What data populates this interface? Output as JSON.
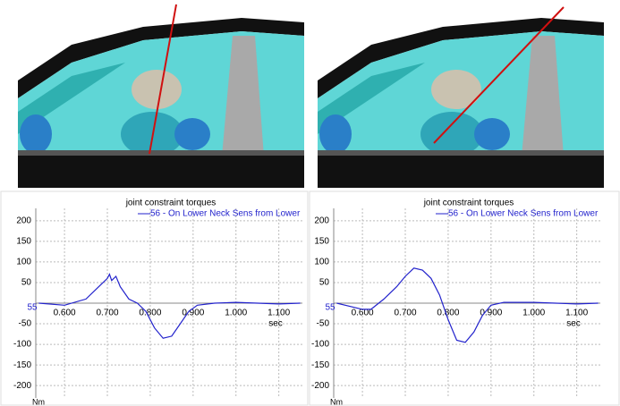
{
  "chart_data": [
    {
      "type": "line",
      "title": "joint constraint torques",
      "x_start_label": "55",
      "x_unit": "sec",
      "y_unit": "Nm",
      "grid": true,
      "xlim": [
        0.533,
        1.155
      ],
      "ylim": [
        -230,
        230
      ],
      "xticks": [
        {
          "value": 0.6,
          "label": "0.600"
        },
        {
          "value": 0.7,
          "label": "0.700"
        },
        {
          "value": 0.8,
          "label": "0.800"
        },
        {
          "value": 0.9,
          "label": "0.900"
        },
        {
          "value": 1.0,
          "label": "1.000"
        },
        {
          "value": 1.1,
          "label": "1.100"
        }
      ],
      "yticks": [
        200,
        150,
        100,
        50,
        -50,
        -100,
        -150,
        -200
      ],
      "x": [
        0.54,
        0.6,
        0.65,
        0.68,
        0.7,
        0.705,
        0.71,
        0.72,
        0.73,
        0.75,
        0.77,
        0.79,
        0.81,
        0.83,
        0.85,
        0.87,
        0.89,
        0.91,
        0.95,
        1.0,
        1.05,
        1.1,
        1.15
      ],
      "series": [
        {
          "name": "56 - On Lower Neck Sens from Lower",
          "color": "#2222cc",
          "values": [
            0,
            -5,
            10,
            40,
            60,
            70,
            55,
            65,
            40,
            10,
            0,
            -20,
            -60,
            -85,
            -80,
            -50,
            -20,
            -5,
            0,
            2,
            0,
            -2,
            0
          ]
        }
      ]
    },
    {
      "type": "line",
      "title": "joint constraint torques",
      "x_start_label": "55",
      "x_unit": "sec",
      "y_unit": "Nm",
      "grid": true,
      "xlim": [
        0.533,
        1.155
      ],
      "ylim": [
        -230,
        230
      ],
      "xticks": [
        {
          "value": 0.6,
          "label": "0.600"
        },
        {
          "value": 0.7,
          "label": "0.700"
        },
        {
          "value": 0.8,
          "label": "0.800"
        },
        {
          "value": 0.9,
          "label": "0.900"
        },
        {
          "value": 1.0,
          "label": "1.000"
        },
        {
          "value": 1.1,
          "label": "1.100"
        }
      ],
      "yticks": [
        200,
        150,
        100,
        50,
        -50,
        -100,
        -150,
        -200
      ],
      "x": [
        0.54,
        0.6,
        0.62,
        0.65,
        0.68,
        0.7,
        0.72,
        0.74,
        0.76,
        0.78,
        0.8,
        0.82,
        0.84,
        0.86,
        0.88,
        0.9,
        0.93,
        1.0,
        1.05,
        1.1,
        1.15
      ],
      "series": [
        {
          "name": "56 - On Lower Neck Sens from Lower",
          "color": "#2222cc",
          "values": [
            0,
            -15,
            -15,
            10,
            40,
            65,
            85,
            80,
            60,
            20,
            -40,
            -90,
            -95,
            -70,
            -30,
            -5,
            2,
            2,
            0,
            -2,
            0
          ]
        }
      ]
    }
  ]
}
